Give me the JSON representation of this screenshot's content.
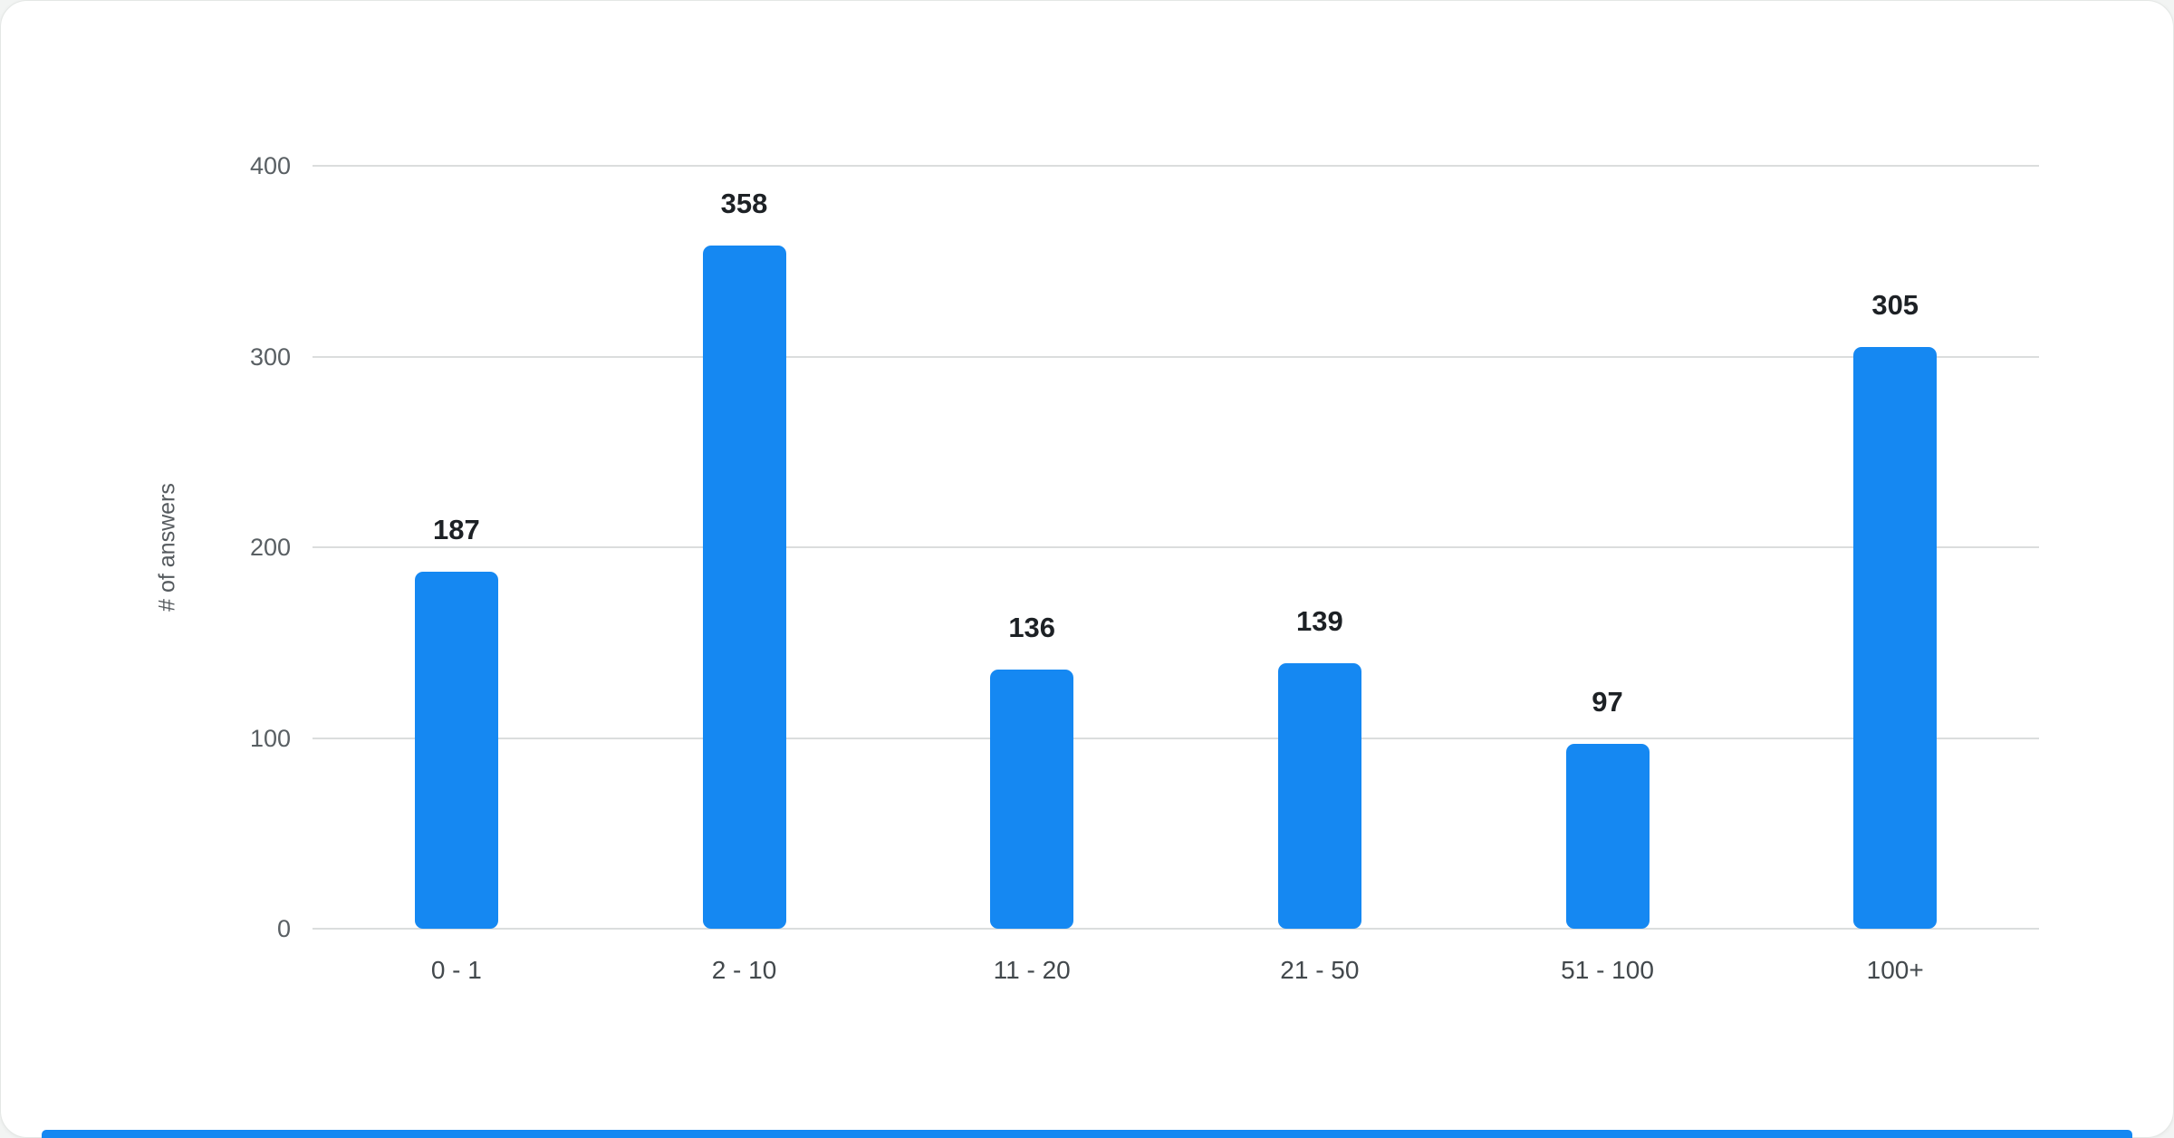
{
  "chart_data": {
    "type": "bar",
    "title": "",
    "categories": [
      "0 - 1",
      "2 - 10",
      "11 - 20",
      "21 - 50",
      "51 - 100",
      "100+"
    ],
    "values": [
      187,
      358,
      136,
      139,
      97,
      305
    ],
    "xlabel": "",
    "ylabel": "# of answers",
    "ylim": [
      0,
      400
    ],
    "yticks": [
      0,
      100,
      200,
      300,
      400
    ],
    "grid": true,
    "legend_position": "none",
    "bar_color": "#1588f2"
  },
  "colors": {
    "accent": "#1588f2",
    "gridline": "#dbdddd",
    "tick_text": "#595f63",
    "value_text": "#1d2125",
    "card_background": "#ffffff"
  }
}
